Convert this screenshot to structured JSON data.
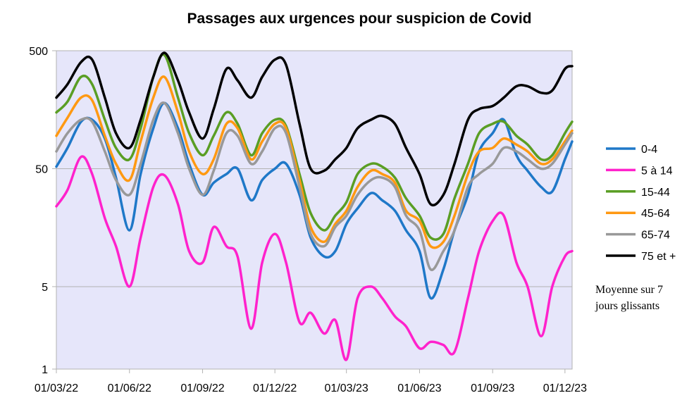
{
  "chart_data": {
    "type": "line",
    "title": "Passages aux urgences pour suspicion de Covid",
    "annotation": [
      "Moyenne sur 7",
      "jours glissants"
    ],
    "y_scale": "log",
    "ylim": [
      1,
      500
    ],
    "y_ticks": [
      {
        "value": 1,
        "label": "1"
      },
      {
        "value": 5,
        "label": "5"
      },
      {
        "value": 50,
        "label": "50"
      },
      {
        "value": 500,
        "label": "500"
      }
    ],
    "x_range": [
      "2022-03-01",
      "2023-12-10"
    ],
    "x_ticks": [
      "01/03/22",
      "01/06/22",
      "01/09/22",
      "01/12/22",
      "01/03/23",
      "01/06/23",
      "01/09/23",
      "01/12/23"
    ],
    "x_tick_dates": [
      "2022-03-01",
      "2022-06-01",
      "2022-09-01",
      "2022-12-01",
      "2023-03-01",
      "2023-06-01",
      "2023-09-01",
      "2023-12-01"
    ],
    "grid": "horizontal",
    "plot_background": "#e6e6fa",
    "legend_position": "right",
    "series": [
      {
        "name": "0-4",
        "color": "#1f78c8",
        "points": [
          [
            "2022-03-01",
            52
          ],
          [
            "2022-03-15",
            75
          ],
          [
            "2022-04-01",
            125
          ],
          [
            "2022-04-15",
            130
          ],
          [
            "2022-05-01",
            90
          ],
          [
            "2022-05-15",
            42
          ],
          [
            "2022-06-01",
            15
          ],
          [
            "2022-06-15",
            45
          ],
          [
            "2022-07-01",
            110
          ],
          [
            "2022-07-15",
            180
          ],
          [
            "2022-08-01",
            110
          ],
          [
            "2022-08-15",
            55
          ],
          [
            "2022-09-01",
            30
          ],
          [
            "2022-09-15",
            38
          ],
          [
            "2022-10-01",
            45
          ],
          [
            "2022-10-15",
            50
          ],
          [
            "2022-11-01",
            27
          ],
          [
            "2022-11-15",
            40
          ],
          [
            "2022-12-01",
            50
          ],
          [
            "2022-12-15",
            55
          ],
          [
            "2023-01-01",
            30
          ],
          [
            "2023-01-15",
            13
          ],
          [
            "2023-02-01",
            9
          ],
          [
            "2023-02-15",
            10
          ],
          [
            "2023-03-01",
            17
          ],
          [
            "2023-03-15",
            23
          ],
          [
            "2023-04-01",
            31
          ],
          [
            "2023-04-15",
            27
          ],
          [
            "2023-05-01",
            22
          ],
          [
            "2023-05-15",
            15
          ],
          [
            "2023-06-01",
            10
          ],
          [
            "2023-06-15",
            4
          ],
          [
            "2023-07-01",
            7
          ],
          [
            "2023-07-15",
            15
          ],
          [
            "2023-08-01",
            30
          ],
          [
            "2023-08-15",
            70
          ],
          [
            "2023-09-01",
            100
          ],
          [
            "2023-09-15",
            130
          ],
          [
            "2023-10-01",
            65
          ],
          [
            "2023-10-15",
            48
          ],
          [
            "2023-11-01",
            35
          ],
          [
            "2023-11-15",
            32
          ],
          [
            "2023-12-01",
            60
          ],
          [
            "2023-12-10",
            85
          ]
        ]
      },
      {
        "name": "5 à 14",
        "color": "#ff22cc",
        "points": [
          [
            "2022-03-01",
            24
          ],
          [
            "2022-03-15",
            33
          ],
          [
            "2022-04-01",
            63
          ],
          [
            "2022-04-15",
            45
          ],
          [
            "2022-05-01",
            19
          ],
          [
            "2022-05-15",
            11
          ],
          [
            "2022-06-01",
            5
          ],
          [
            "2022-06-15",
            13
          ],
          [
            "2022-07-01",
            35
          ],
          [
            "2022-07-15",
            44
          ],
          [
            "2022-08-01",
            25
          ],
          [
            "2022-08-15",
            10
          ],
          [
            "2022-09-01",
            8
          ],
          [
            "2022-09-15",
            16
          ],
          [
            "2022-10-01",
            11
          ],
          [
            "2022-10-15",
            9
          ],
          [
            "2022-11-01",
            2.2
          ],
          [
            "2022-11-15",
            8
          ],
          [
            "2022-12-01",
            14
          ],
          [
            "2022-12-15",
            8
          ],
          [
            "2023-01-01",
            2.5
          ],
          [
            "2023-01-15",
            3
          ],
          [
            "2023-02-01",
            2
          ],
          [
            "2023-02-15",
            2.6
          ],
          [
            "2023-03-01",
            1.2
          ],
          [
            "2023-03-15",
            4
          ],
          [
            "2023-04-01",
            5
          ],
          [
            "2023-04-15",
            4
          ],
          [
            "2023-05-01",
            2.8
          ],
          [
            "2023-05-15",
            2.3
          ],
          [
            "2023-06-01",
            1.5
          ],
          [
            "2023-06-15",
            1.7
          ],
          [
            "2023-07-01",
            1.6
          ],
          [
            "2023-07-15",
            1.4
          ],
          [
            "2023-08-01",
            4
          ],
          [
            "2023-08-15",
            10
          ],
          [
            "2023-09-01",
            18
          ],
          [
            "2023-09-15",
            20
          ],
          [
            "2023-10-01",
            8
          ],
          [
            "2023-10-15",
            5
          ],
          [
            "2023-11-01",
            1.9
          ],
          [
            "2023-11-15",
            5
          ],
          [
            "2023-12-01",
            9
          ],
          [
            "2023-12-10",
            10
          ]
        ]
      },
      {
        "name": "15-44",
        "color": "#5a9e24",
        "points": [
          [
            "2022-03-01",
            150
          ],
          [
            "2022-03-15",
            185
          ],
          [
            "2022-04-01",
            300
          ],
          [
            "2022-04-15",
            260
          ],
          [
            "2022-05-01",
            130
          ],
          [
            "2022-05-15",
            75
          ],
          [
            "2022-06-01",
            60
          ],
          [
            "2022-06-15",
            110
          ],
          [
            "2022-07-01",
            300
          ],
          [
            "2022-07-15",
            460
          ],
          [
            "2022-08-01",
            200
          ],
          [
            "2022-08-15",
            100
          ],
          [
            "2022-09-01",
            65
          ],
          [
            "2022-09-15",
            95
          ],
          [
            "2022-10-01",
            150
          ],
          [
            "2022-10-15",
            120
          ],
          [
            "2022-11-01",
            65
          ],
          [
            "2022-11-15",
            100
          ],
          [
            "2022-12-01",
            130
          ],
          [
            "2022-12-15",
            115
          ],
          [
            "2023-01-01",
            45
          ],
          [
            "2023-01-15",
            21
          ],
          [
            "2023-02-01",
            15
          ],
          [
            "2023-02-15",
            20
          ],
          [
            "2023-03-01",
            26
          ],
          [
            "2023-03-15",
            45
          ],
          [
            "2023-04-01",
            55
          ],
          [
            "2023-04-15",
            52
          ],
          [
            "2023-05-01",
            42
          ],
          [
            "2023-05-15",
            28
          ],
          [
            "2023-06-01",
            20
          ],
          [
            "2023-06-15",
            13
          ],
          [
            "2023-07-01",
            14
          ],
          [
            "2023-07-15",
            28
          ],
          [
            "2023-08-01",
            55
          ],
          [
            "2023-08-15",
            100
          ],
          [
            "2023-09-01",
            120
          ],
          [
            "2023-09-15",
            125
          ],
          [
            "2023-10-01",
            95
          ],
          [
            "2023-10-15",
            80
          ],
          [
            "2023-11-01",
            60
          ],
          [
            "2023-11-15",
            65
          ],
          [
            "2023-12-01",
            100
          ],
          [
            "2023-12-10",
            125
          ]
        ]
      },
      {
        "name": "45-64",
        "color": "#ff9912",
        "points": [
          [
            "2022-03-01",
            95
          ],
          [
            "2022-03-15",
            135
          ],
          [
            "2022-04-01",
            200
          ],
          [
            "2022-04-15",
            190
          ],
          [
            "2022-05-01",
            95
          ],
          [
            "2022-05-15",
            55
          ],
          [
            "2022-06-01",
            40
          ],
          [
            "2022-06-15",
            85
          ],
          [
            "2022-07-01",
            200
          ],
          [
            "2022-07-15",
            300
          ],
          [
            "2022-08-01",
            150
          ],
          [
            "2022-08-15",
            70
          ],
          [
            "2022-09-01",
            45
          ],
          [
            "2022-09-15",
            60
          ],
          [
            "2022-10-01",
            120
          ],
          [
            "2022-10-15",
            110
          ],
          [
            "2022-11-01",
            60
          ],
          [
            "2022-11-15",
            85
          ],
          [
            "2022-12-01",
            120
          ],
          [
            "2022-12-15",
            110
          ],
          [
            "2023-01-01",
            40
          ],
          [
            "2023-01-15",
            16
          ],
          [
            "2023-02-01",
            12
          ],
          [
            "2023-02-15",
            17
          ],
          [
            "2023-03-01",
            22
          ],
          [
            "2023-03-15",
            35
          ],
          [
            "2023-04-01",
            48
          ],
          [
            "2023-04-15",
            45
          ],
          [
            "2023-05-01",
            38
          ],
          [
            "2023-05-15",
            22
          ],
          [
            "2023-06-01",
            18
          ],
          [
            "2023-06-15",
            11
          ],
          [
            "2023-07-01",
            12
          ],
          [
            "2023-07-15",
            20
          ],
          [
            "2023-08-01",
            45
          ],
          [
            "2023-08-15",
            70
          ],
          [
            "2023-09-01",
            75
          ],
          [
            "2023-09-15",
            90
          ],
          [
            "2023-10-01",
            80
          ],
          [
            "2023-10-15",
            70
          ],
          [
            "2023-11-01",
            55
          ],
          [
            "2023-11-15",
            60
          ],
          [
            "2023-12-01",
            85
          ],
          [
            "2023-12-10",
            105
          ]
        ]
      },
      {
        "name": "65-74",
        "color": "#999999",
        "points": [
          [
            "2022-03-01",
            70
          ],
          [
            "2022-03-15",
            100
          ],
          [
            "2022-04-01",
            130
          ],
          [
            "2022-04-15",
            125
          ],
          [
            "2022-05-01",
            70
          ],
          [
            "2022-05-15",
            40
          ],
          [
            "2022-06-01",
            30
          ],
          [
            "2022-06-15",
            55
          ],
          [
            "2022-07-01",
            130
          ],
          [
            "2022-07-15",
            180
          ],
          [
            "2022-08-01",
            100
          ],
          [
            "2022-08-15",
            50
          ],
          [
            "2022-09-01",
            30
          ],
          [
            "2022-09-15",
            48
          ],
          [
            "2022-10-01",
            100
          ],
          [
            "2022-10-15",
            95
          ],
          [
            "2022-11-01",
            55
          ],
          [
            "2022-11-15",
            70
          ],
          [
            "2022-12-01",
            110
          ],
          [
            "2022-12-15",
            100
          ],
          [
            "2023-01-01",
            35
          ],
          [
            "2023-01-15",
            14
          ],
          [
            "2023-02-01",
            11
          ],
          [
            "2023-02-15",
            16
          ],
          [
            "2023-03-01",
            20
          ],
          [
            "2023-03-15",
            30
          ],
          [
            "2023-04-01",
            40
          ],
          [
            "2023-04-15",
            42
          ],
          [
            "2023-05-01",
            35
          ],
          [
            "2023-05-15",
            20
          ],
          [
            "2023-06-01",
            15
          ],
          [
            "2023-06-15",
            7
          ],
          [
            "2023-07-01",
            10
          ],
          [
            "2023-07-15",
            15
          ],
          [
            "2023-08-01",
            35
          ],
          [
            "2023-08-15",
            45
          ],
          [
            "2023-09-01",
            55
          ],
          [
            "2023-09-15",
            75
          ],
          [
            "2023-10-01",
            70
          ],
          [
            "2023-10-15",
            60
          ],
          [
            "2023-11-01",
            50
          ],
          [
            "2023-11-15",
            55
          ],
          [
            "2023-12-01",
            80
          ],
          [
            "2023-12-10",
            100
          ]
        ]
      },
      {
        "name": "75 et +",
        "color": "#000000",
        "points": [
          [
            "2022-03-01",
            200
          ],
          [
            "2022-03-15",
            260
          ],
          [
            "2022-04-01",
            400
          ],
          [
            "2022-04-15",
            420
          ],
          [
            "2022-05-01",
            200
          ],
          [
            "2022-05-15",
            100
          ],
          [
            "2022-06-01",
            75
          ],
          [
            "2022-06-15",
            130
          ],
          [
            "2022-07-01",
            300
          ],
          [
            "2022-07-15",
            480
          ],
          [
            "2022-08-01",
            280
          ],
          [
            "2022-08-15",
            150
          ],
          [
            "2022-09-01",
            90
          ],
          [
            "2022-09-15",
            160
          ],
          [
            "2022-10-01",
            350
          ],
          [
            "2022-10-15",
            280
          ],
          [
            "2022-11-01",
            200
          ],
          [
            "2022-11-15",
            300
          ],
          [
            "2022-12-01",
            420
          ],
          [
            "2022-12-15",
            380
          ],
          [
            "2023-01-01",
            120
          ],
          [
            "2023-01-15",
            50
          ],
          [
            "2023-02-01",
            48
          ],
          [
            "2023-02-15",
            60
          ],
          [
            "2023-03-01",
            75
          ],
          [
            "2023-03-15",
            110
          ],
          [
            "2023-04-01",
            130
          ],
          [
            "2023-04-15",
            140
          ],
          [
            "2023-05-01",
            120
          ],
          [
            "2023-05-15",
            75
          ],
          [
            "2023-06-01",
            45
          ],
          [
            "2023-06-15",
            25
          ],
          [
            "2023-07-01",
            30
          ],
          [
            "2023-07-15",
            55
          ],
          [
            "2023-08-01",
            130
          ],
          [
            "2023-08-15",
            160
          ],
          [
            "2023-09-01",
            170
          ],
          [
            "2023-09-15",
            200
          ],
          [
            "2023-10-01",
            250
          ],
          [
            "2023-10-15",
            250
          ],
          [
            "2023-11-01",
            220
          ],
          [
            "2023-11-15",
            230
          ],
          [
            "2023-12-01",
            350
          ],
          [
            "2023-12-10",
            370
          ]
        ]
      }
    ]
  }
}
